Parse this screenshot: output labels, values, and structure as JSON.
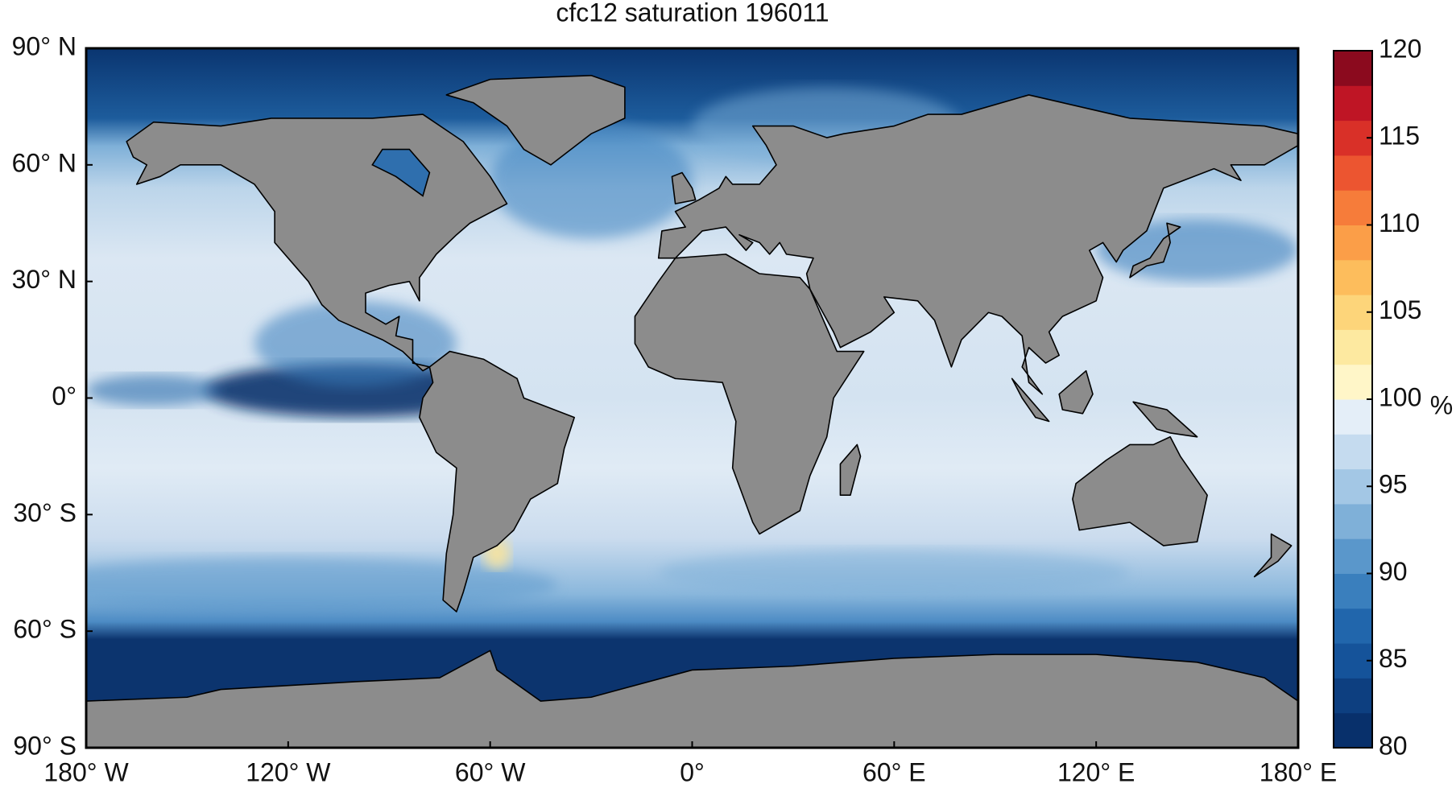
{
  "chart_data": {
    "type": "map",
    "title": "cfc12 saturation 196011",
    "xlim": [
      -180,
      180
    ],
    "xticks": [
      {
        "value": -180,
        "label": "180° W"
      },
      {
        "value": -120,
        "label": "120° W"
      },
      {
        "value": -60,
        "label": "60° W"
      },
      {
        "value": 0,
        "label": "0°"
      },
      {
        "value": 60,
        "label": "60° E"
      },
      {
        "value": 120,
        "label": "120° E"
      },
      {
        "value": 180,
        "label": "180° E"
      }
    ],
    "ylim": [
      -90,
      90
    ],
    "yticks": [
      {
        "value": 90,
        "label": "90° N"
      },
      {
        "value": 60,
        "label": "60° N"
      },
      {
        "value": 30,
        "label": "30° N"
      },
      {
        "value": 0,
        "label": "0°"
      },
      {
        "value": -30,
        "label": "30° S"
      },
      {
        "value": -60,
        "label": "60° S"
      },
      {
        "value": -90,
        "label": "90° S"
      }
    ],
    "colorbar": {
      "label": "%",
      "clim": [
        80,
        120
      ],
      "ticks": [
        80,
        85,
        90,
        95,
        100,
        105,
        110,
        115,
        120
      ],
      "colors": [
        "#08306b",
        "#0d3f80",
        "#15539a",
        "#2166ac",
        "#3a7fbd",
        "#5a97cb",
        "#7fb0d8",
        "#a3c7e5",
        "#c5dbef",
        "#e4eef8",
        "#fff6c8",
        "#fde9a0",
        "#fdd57a",
        "#fdbd5c",
        "#fb9e48",
        "#f67c3a",
        "#ec5530",
        "#d93028",
        "#bf1525",
        "#8b0a1e"
      ]
    }
  }
}
